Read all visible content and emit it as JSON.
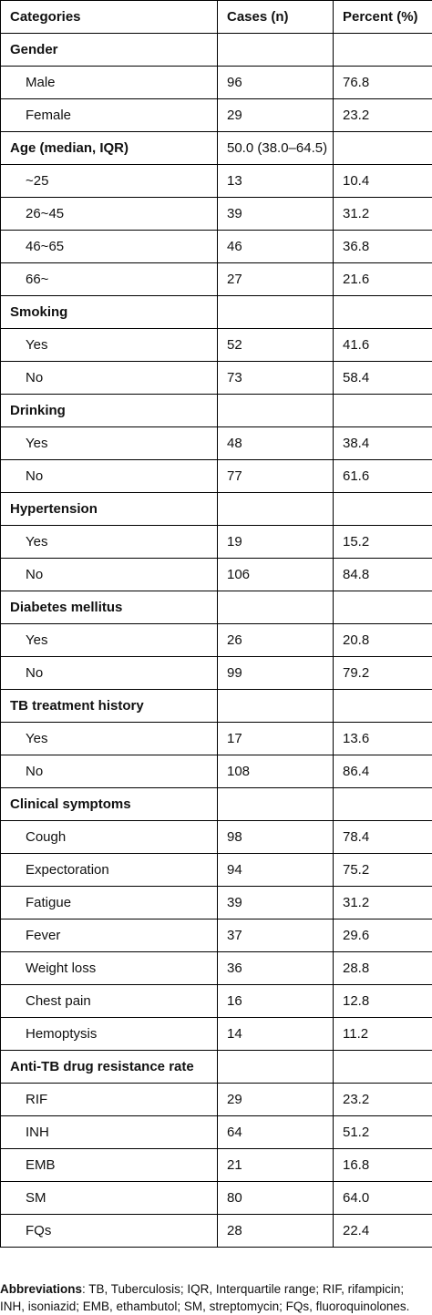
{
  "header": {
    "categories": "Categories",
    "cases": "Cases (n)",
    "percent": "Percent (%)"
  },
  "rows": [
    {
      "label": "Gender",
      "cases": "",
      "percent": "",
      "group": true
    },
    {
      "label": "Male",
      "cases": "96",
      "percent": "76.8",
      "group": false
    },
    {
      "label": "Female",
      "cases": "29",
      "percent": "23.2",
      "group": false
    },
    {
      "label": "Age (median, IQR)",
      "cases": "50.0 (38.0–64.5)",
      "percent": "",
      "group": true
    },
    {
      "label": "~25",
      "cases": "13",
      "percent": "10.4",
      "group": false
    },
    {
      "label": "26~45",
      "cases": "39",
      "percent": "31.2",
      "group": false
    },
    {
      "label": "46~65",
      "cases": "46",
      "percent": "36.8",
      "group": false
    },
    {
      "label": "66~",
      "cases": "27",
      "percent": "21.6",
      "group": false
    },
    {
      "label": "Smoking",
      "cases": "",
      "percent": "",
      "group": true
    },
    {
      "label": "Yes",
      "cases": "52",
      "percent": "41.6",
      "group": false
    },
    {
      "label": "No",
      "cases": "73",
      "percent": "58.4",
      "group": false
    },
    {
      "label": "Drinking",
      "cases": "",
      "percent": "",
      "group": true
    },
    {
      "label": "Yes",
      "cases": "48",
      "percent": "38.4",
      "group": false
    },
    {
      "label": "No",
      "cases": "77",
      "percent": "61.6",
      "group": false
    },
    {
      "label": "Hypertension",
      "cases": "",
      "percent": "",
      "group": true
    },
    {
      "label": "Yes",
      "cases": "19",
      "percent": "15.2",
      "group": false
    },
    {
      "label": "No",
      "cases": "106",
      "percent": "84.8",
      "group": false
    },
    {
      "label": "Diabetes mellitus",
      "cases": "",
      "percent": "",
      "group": true
    },
    {
      "label": "Yes",
      "cases": "26",
      "percent": "20.8",
      "group": false
    },
    {
      "label": "No",
      "cases": "99",
      "percent": "79.2",
      "group": false
    },
    {
      "label": "TB treatment history",
      "cases": "",
      "percent": "",
      "group": true
    },
    {
      "label": "Yes",
      "cases": "17",
      "percent": "13.6",
      "group": false
    },
    {
      "label": "No",
      "cases": "108",
      "percent": "86.4",
      "group": false
    },
    {
      "label": "Clinical symptoms",
      "cases": "",
      "percent": "",
      "group": true
    },
    {
      "label": "Cough",
      "cases": "98",
      "percent": "78.4",
      "group": false
    },
    {
      "label": "Expectoration",
      "cases": "94",
      "percent": "75.2",
      "group": false
    },
    {
      "label": "Fatigue",
      "cases": "39",
      "percent": "31.2",
      "group": false
    },
    {
      "label": "Fever",
      "cases": "37",
      "percent": "29.6",
      "group": false
    },
    {
      "label": "Weight loss",
      "cases": "36",
      "percent": "28.8",
      "group": false
    },
    {
      "label": "Chest pain",
      "cases": "16",
      "percent": "12.8",
      "group": false
    },
    {
      "label": "Hemoptysis",
      "cases": "14",
      "percent": "11.2",
      "group": false
    },
    {
      "label": "Anti-TB drug resistance rate",
      "cases": "",
      "percent": "",
      "group": true
    },
    {
      "label": "RIF",
      "cases": "29",
      "percent": "23.2",
      "group": false
    },
    {
      "label": "INH",
      "cases": "64",
      "percent": "51.2",
      "group": false
    },
    {
      "label": "EMB",
      "cases": "21",
      "percent": "16.8",
      "group": false
    },
    {
      "label": "SM",
      "cases": "80",
      "percent": "64.0",
      "group": false
    },
    {
      "label": "FQs",
      "cases": "28",
      "percent": "22.4",
      "group": false
    }
  ],
  "footnote": {
    "label": "Abbreviations",
    "text": ": TB, Tuberculosis; IQR, Interquartile range; RIF, rifampicin; INH, isoniazid; EMB, ethambutol; SM, streptomycin; FQs, fluoroquinolones."
  }
}
